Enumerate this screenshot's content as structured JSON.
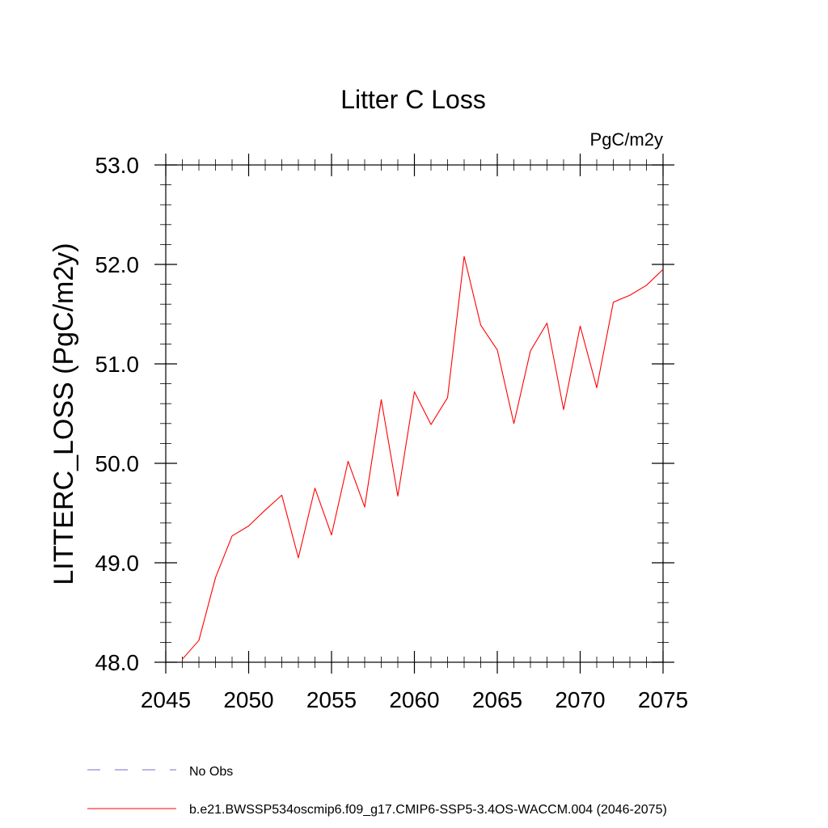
{
  "chart_data": {
    "type": "line",
    "title": "Litter C Loss",
    "units": "PgC/m2y",
    "ylabel": "LITTERC_LOSS  (PgC/m2y)",
    "xlabel": "",
    "xlim": [
      2045,
      2075
    ],
    "ylim": [
      48.0,
      53.0
    ],
    "xticks": [
      2045,
      2050,
      2055,
      2060,
      2065,
      2070,
      2075
    ],
    "yticks": [
      48.0,
      49.0,
      50.0,
      51.0,
      52.0,
      53.0
    ],
    "ytick_labels": [
      "48.0",
      "49.0",
      "50.0",
      "51.0",
      "52.0",
      "53.0"
    ],
    "grid": false,
    "legend_position": "bottom-left",
    "x": [
      2046,
      2047,
      2048,
      2049,
      2050,
      2051,
      2052,
      2053,
      2054,
      2055,
      2056,
      2057,
      2058,
      2059,
      2060,
      2061,
      2062,
      2063,
      2064,
      2065,
      2066,
      2067,
      2068,
      2069,
      2070,
      2071,
      2072,
      2073,
      2074,
      2075
    ],
    "series": [
      {
        "name": "b.e21.BWSSP534oscmip6.f09_g17.CMIP6-SSP5-3.4OS-WACCM.004 (2046-2075)",
        "color": "#ff0000",
        "dash": "solid",
        "values": [
          48.03,
          48.22,
          48.85,
          49.27,
          49.37,
          49.53,
          49.68,
          49.05,
          49.75,
          49.28,
          50.02,
          49.56,
          50.64,
          49.67,
          50.72,
          50.39,
          50.66,
          52.08,
          51.39,
          51.14,
          50.4,
          51.13,
          51.41,
          50.54,
          51.38,
          50.76,
          51.62,
          51.69,
          51.79,
          51.95
        ]
      }
    ],
    "legend": [
      {
        "label": "No Obs",
        "color": "#7b68c8",
        "dash": "dashed"
      },
      {
        "label": "b.e21.BWSSP534oscmip6.f09_g17.CMIP6-SSP5-3.4OS-WACCM.004 (2046-2075)",
        "color": "#ff0000",
        "dash": "solid"
      }
    ]
  }
}
